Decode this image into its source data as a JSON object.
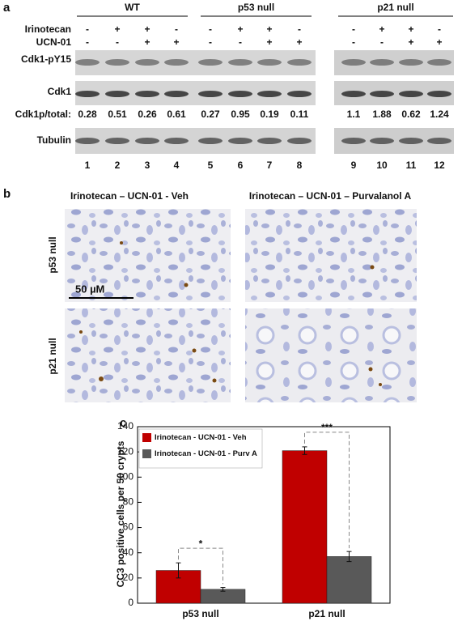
{
  "panel_a": {
    "label": "a",
    "groups": [
      "WT",
      "p53 null",
      "p21 null"
    ],
    "treatments": [
      {
        "name": "Irinotecan",
        "signs": [
          "-",
          "+",
          "+",
          "-",
          "-",
          "+",
          "+",
          "-",
          "-",
          "+",
          "+",
          "-"
        ]
      },
      {
        "name": "UCN-01",
        "signs": [
          "-",
          "-",
          "+",
          "+",
          "-",
          "-",
          "+",
          "+",
          "-",
          "-",
          "+",
          "+"
        ]
      }
    ],
    "row_labels": {
      "py15": "Cdk1-pY15",
      "cdk1": "Cdk1",
      "ratio": "Cdk1p/total:",
      "tubulin": "Tubulin"
    },
    "ratios": [
      "0.28",
      "0.51",
      "0.26",
      "0.61",
      "0.27",
      "0.95",
      "0.19",
      "0.11",
      "1.1",
      "1.88",
      "0.62",
      "1.24"
    ],
    "lanes": [
      "1",
      "2",
      "3",
      "4",
      "5",
      "6",
      "7",
      "8",
      "9",
      "10",
      "11",
      "12"
    ]
  },
  "panel_b": {
    "label": "b",
    "columns": [
      "Irinotecan – UCN-01 - Veh",
      "Irinotecan – UCN-01 – Purvalanol A"
    ],
    "rows": [
      "p53 null",
      "p21 null"
    ],
    "scale_bar": "50 µM"
  },
  "chart_data": {
    "type": "bar",
    "panel_label": "c",
    "y_label": "CC3 positive cells per 50 crypts",
    "categories": [
      "p53 null",
      "p21 null"
    ],
    "series": [
      {
        "name": "Irinotecan - UCN-01 - Veh",
        "color": "#c00000",
        "values": [
          26,
          121
        ],
        "errors": [
          6,
          3
        ]
      },
      {
        "name": "Irinotecan - UCN-01 - Purv A",
        "color": "#595959",
        "values": [
          11,
          37
        ],
        "errors": [
          1.5,
          4
        ]
      }
    ],
    "annotations": [
      "*",
      "***"
    ],
    "ylim": [
      0,
      140
    ],
    "yticks": [
      0,
      20,
      40,
      60,
      80,
      100,
      120,
      140
    ]
  }
}
